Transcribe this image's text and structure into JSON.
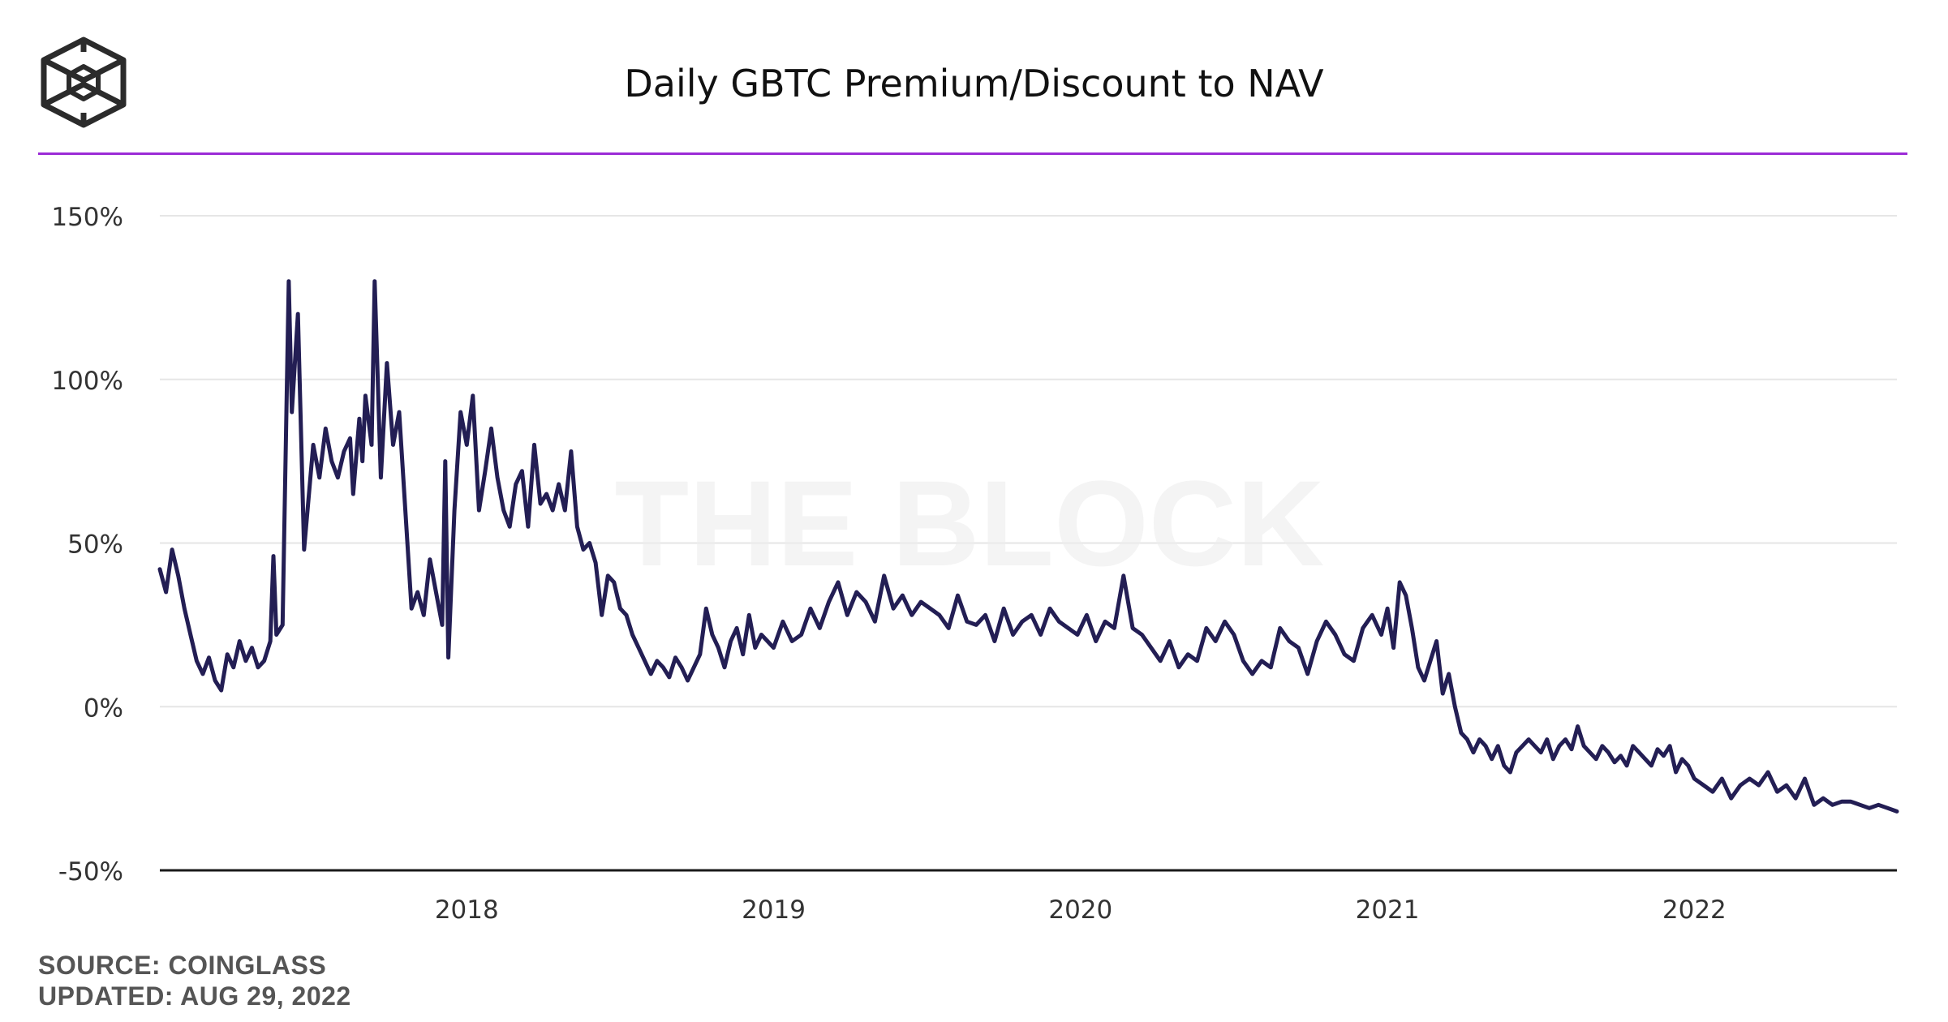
{
  "header": {
    "title": "Daily GBTC Premium/Discount to NAV",
    "logo_icon": "cube-logo-icon",
    "accent_color": "#9b2bd6"
  },
  "watermark": "THE BLOCK",
  "footer": {
    "source": "SOURCE: COINGLASS",
    "updated": "UPDATED: AUG 29, 2022"
  },
  "chart_data": {
    "type": "line",
    "title": "Daily GBTC Premium/Discount to NAV",
    "xlabel": "",
    "ylabel": "",
    "ylim": [
      -50,
      150
    ],
    "xlim": [
      2017.0,
      2022.66
    ],
    "y_ticks": [
      {
        "value": 150,
        "label": "150%"
      },
      {
        "value": 100,
        "label": "100%"
      },
      {
        "value": 50,
        "label": "50%"
      },
      {
        "value": 0,
        "label": "0%"
      },
      {
        "value": -50,
        "label": "-50%"
      }
    ],
    "x_ticks": [
      {
        "value": 2018.0,
        "label": "2018"
      },
      {
        "value": 2019.0,
        "label": "2019"
      },
      {
        "value": 2020.0,
        "label": "2020"
      },
      {
        "value": 2021.0,
        "label": "2021"
      },
      {
        "value": 2022.0,
        "label": "2022"
      }
    ],
    "grid": "horizontal",
    "legend": "none",
    "line_color": "#231e54",
    "series": [
      {
        "x": [
          2017.0,
          2017.02,
          2017.04,
          2017.06,
          2017.08,
          2017.1,
          2017.12,
          2017.14,
          2017.16,
          2017.18,
          2017.2,
          2017.22,
          2017.24,
          2017.26,
          2017.28,
          2017.3,
          2017.32,
          2017.34,
          2017.36,
          2017.37,
          2017.38,
          2017.4,
          2017.42,
          2017.43,
          2017.45,
          2017.47,
          2017.5,
          2017.52,
          2017.54,
          2017.56,
          2017.58,
          2017.6,
          2017.62,
          2017.63,
          2017.65,
          2017.66,
          2017.67,
          2017.69,
          2017.7,
          2017.72,
          2017.74,
          2017.76,
          2017.78,
          2017.8,
          2017.82,
          2017.84,
          2017.86,
          2017.88,
          2017.9,
          2017.92,
          2017.93,
          2017.94,
          2017.96,
          2017.98,
          2018.0,
          2018.02,
          2018.04,
          2018.06,
          2018.08,
          2018.1,
          2018.12,
          2018.14,
          2018.16,
          2018.18,
          2018.2,
          2018.22,
          2018.24,
          2018.26,
          2018.28,
          2018.3,
          2018.32,
          2018.34,
          2018.36,
          2018.38,
          2018.4,
          2018.42,
          2018.44,
          2018.46,
          2018.48,
          2018.5,
          2018.52,
          2018.54,
          2018.56,
          2018.58,
          2018.6,
          2018.62,
          2018.64,
          2018.66,
          2018.68,
          2018.7,
          2018.72,
          2018.74,
          2018.76,
          2018.78,
          2018.8,
          2018.82,
          2018.84,
          2018.86,
          2018.88,
          2018.9,
          2018.92,
          2018.94,
          2018.96,
          2018.98,
          2019.0,
          2019.03,
          2019.06,
          2019.09,
          2019.12,
          2019.15,
          2019.18,
          2019.21,
          2019.24,
          2019.27,
          2019.3,
          2019.33,
          2019.36,
          2019.39,
          2019.42,
          2019.45,
          2019.48,
          2019.51,
          2019.54,
          2019.57,
          2019.6,
          2019.63,
          2019.66,
          2019.69,
          2019.72,
          2019.75,
          2019.78,
          2019.81,
          2019.84,
          2019.87,
          2019.9,
          2019.93,
          2019.96,
          2019.99,
          2020.02,
          2020.05,
          2020.08,
          2020.11,
          2020.14,
          2020.17,
          2020.2,
          2020.23,
          2020.26,
          2020.29,
          2020.32,
          2020.35,
          2020.38,
          2020.41,
          2020.44,
          2020.47,
          2020.5,
          2020.53,
          2020.56,
          2020.59,
          2020.62,
          2020.65,
          2020.68,
          2020.71,
          2020.74,
          2020.77,
          2020.8,
          2020.83,
          2020.86,
          2020.89,
          2020.92,
          2020.95,
          2020.98,
          2021.0,
          2021.02,
          2021.04,
          2021.06,
          2021.08,
          2021.1,
          2021.12,
          2021.14,
          2021.16,
          2021.18,
          2021.2,
          2021.22,
          2021.24,
          2021.26,
          2021.28,
          2021.3,
          2021.32,
          2021.34,
          2021.36,
          2021.38,
          2021.4,
          2021.42,
          2021.44,
          2021.46,
          2021.48,
          2021.5,
          2021.52,
          2021.54,
          2021.56,
          2021.58,
          2021.6,
          2021.62,
          2021.64,
          2021.66,
          2021.68,
          2021.7,
          2021.72,
          2021.74,
          2021.76,
          2021.78,
          2021.8,
          2021.82,
          2021.84,
          2021.86,
          2021.88,
          2021.9,
          2021.92,
          2021.94,
          2021.96,
          2021.98,
          2022.0,
          2022.03,
          2022.06,
          2022.09,
          2022.12,
          2022.15,
          2022.18,
          2022.21,
          2022.24,
          2022.27,
          2022.3,
          2022.33,
          2022.36,
          2022.39,
          2022.42,
          2022.45,
          2022.48,
          2022.51,
          2022.54,
          2022.57,
          2022.6,
          2022.63,
          2022.66
        ],
        "y": [
          42,
          35,
          48,
          40,
          30,
          22,
          14,
          10,
          15,
          8,
          5,
          16,
          12,
          20,
          14,
          18,
          12,
          14,
          20,
          46,
          22,
          25,
          130,
          90,
          120,
          48,
          80,
          70,
          85,
          75,
          70,
          78,
          82,
          65,
          88,
          75,
          95,
          80,
          130,
          70,
          105,
          80,
          90,
          60,
          30,
          35,
          28,
          45,
          35,
          25,
          75,
          15,
          60,
          90,
          80,
          95,
          60,
          72,
          85,
          70,
          60,
          55,
          68,
          72,
          55,
          80,
          62,
          65,
          60,
          68,
          60,
          78,
          55,
          48,
          50,
          44,
          28,
          40,
          38,
          30,
          28,
          22,
          18,
          14,
          10,
          14,
          12,
          9,
          15,
          12,
          8,
          12,
          16,
          30,
          22,
          18,
          12,
          20,
          24,
          16,
          28,
          18,
          22,
          20,
          18,
          26,
          20,
          22,
          30,
          24,
          32,
          38,
          28,
          35,
          32,
          26,
          40,
          30,
          34,
          28,
          32,
          30,
          28,
          24,
          34,
          26,
          25,
          28,
          20,
          30,
          22,
          26,
          28,
          22,
          30,
          26,
          24,
          22,
          28,
          20,
          26,
          24,
          40,
          24,
          22,
          18,
          14,
          20,
          12,
          16,
          14,
          24,
          20,
          26,
          22,
          14,
          10,
          14,
          12,
          24,
          20,
          18,
          10,
          20,
          26,
          22,
          16,
          14,
          24,
          28,
          22,
          30,
          18,
          38,
          34,
          24,
          12,
          8,
          14,
          20,
          4,
          10,
          0,
          -8,
          -10,
          -14,
          -10,
          -12,
          -16,
          -12,
          -18,
          -20,
          -14,
          -12,
          -10,
          -12,
          -14,
          -10,
          -16,
          -12,
          -10,
          -13,
          -6,
          -12,
          -14,
          -16,
          -12,
          -14,
          -17,
          -15,
          -18,
          -12,
          -14,
          -16,
          -18,
          -13,
          -15,
          -12,
          -20,
          -16,
          -18,
          -22,
          -24,
          -26,
          -22,
          -28,
          -24,
          -22,
          -24,
          -20,
          -26,
          -24,
          -28,
          -22,
          -30,
          -28,
          -30,
          -29,
          -29,
          -30,
          -31,
          -30,
          -31,
          -32
        ]
      }
    ]
  }
}
